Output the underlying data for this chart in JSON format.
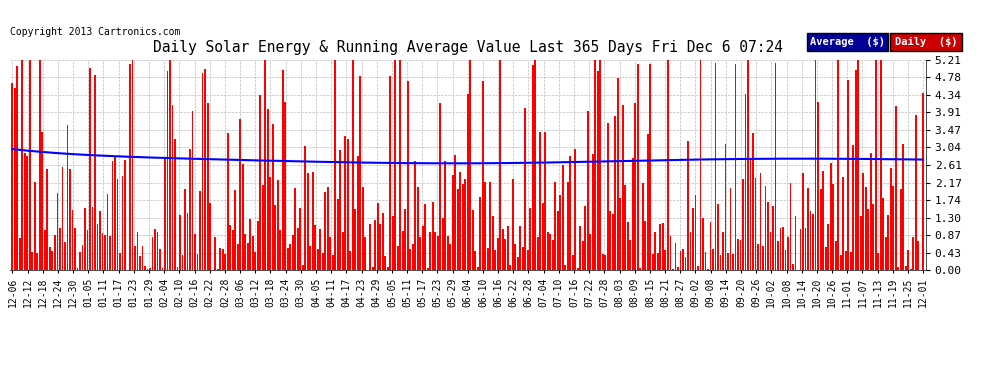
{
  "title": "Daily Solar Energy & Running Average Value Last 365 Days Fri Dec 6 07:24",
  "copyright": "Copyright 2013 Cartronics.com",
  "background_color": "#ffffff",
  "plot_bg_color": "#ffffff",
  "grid_color": "#bbbbbb",
  "bar_color": "#ff0000",
  "avg_line_color": "#0000ff",
  "ylim": [
    0.0,
    5.21
  ],
  "yticks": [
    0.0,
    0.43,
    0.87,
    1.3,
    1.74,
    2.17,
    2.61,
    3.04,
    3.47,
    3.91,
    4.34,
    4.78,
    5.21
  ],
  "ytick_labels": [
    "0.00",
    "0.43",
    "0.87",
    "1.30",
    "1.74",
    "2.17",
    "2.61",
    "3.04",
    "3.47",
    "3.91",
    "4.34",
    "4.78",
    "5.21"
  ],
  "legend_avg_bg": "#000099",
  "legend_daily_bg": "#cc0000",
  "legend_text_color": "#ffffff",
  "legend_avg_text": "Average  ($)",
  "legend_daily_text": "Daily  ($)",
  "x_tick_labels": [
    "12-06",
    "12-12",
    "12-18",
    "12-24",
    "12-30",
    "01-05",
    "01-11",
    "01-17",
    "01-23",
    "01-29",
    "02-04",
    "02-10",
    "02-16",
    "02-22",
    "02-28",
    "03-06",
    "03-12",
    "03-18",
    "03-24",
    "03-30",
    "04-05",
    "04-11",
    "04-17",
    "04-23",
    "04-29",
    "05-05",
    "05-11",
    "05-17",
    "05-23",
    "05-29",
    "06-04",
    "06-10",
    "06-16",
    "06-22",
    "06-28",
    "07-04",
    "07-10",
    "07-16",
    "07-22",
    "07-28",
    "08-03",
    "08-09",
    "08-15",
    "08-21",
    "08-27",
    "09-02",
    "09-08",
    "09-14",
    "09-20",
    "09-26",
    "10-02",
    "10-08",
    "10-14",
    "10-20",
    "10-26",
    "11-01",
    "11-07",
    "11-13",
    "11-19",
    "11-25",
    "12-01"
  ],
  "n_days": 365
}
